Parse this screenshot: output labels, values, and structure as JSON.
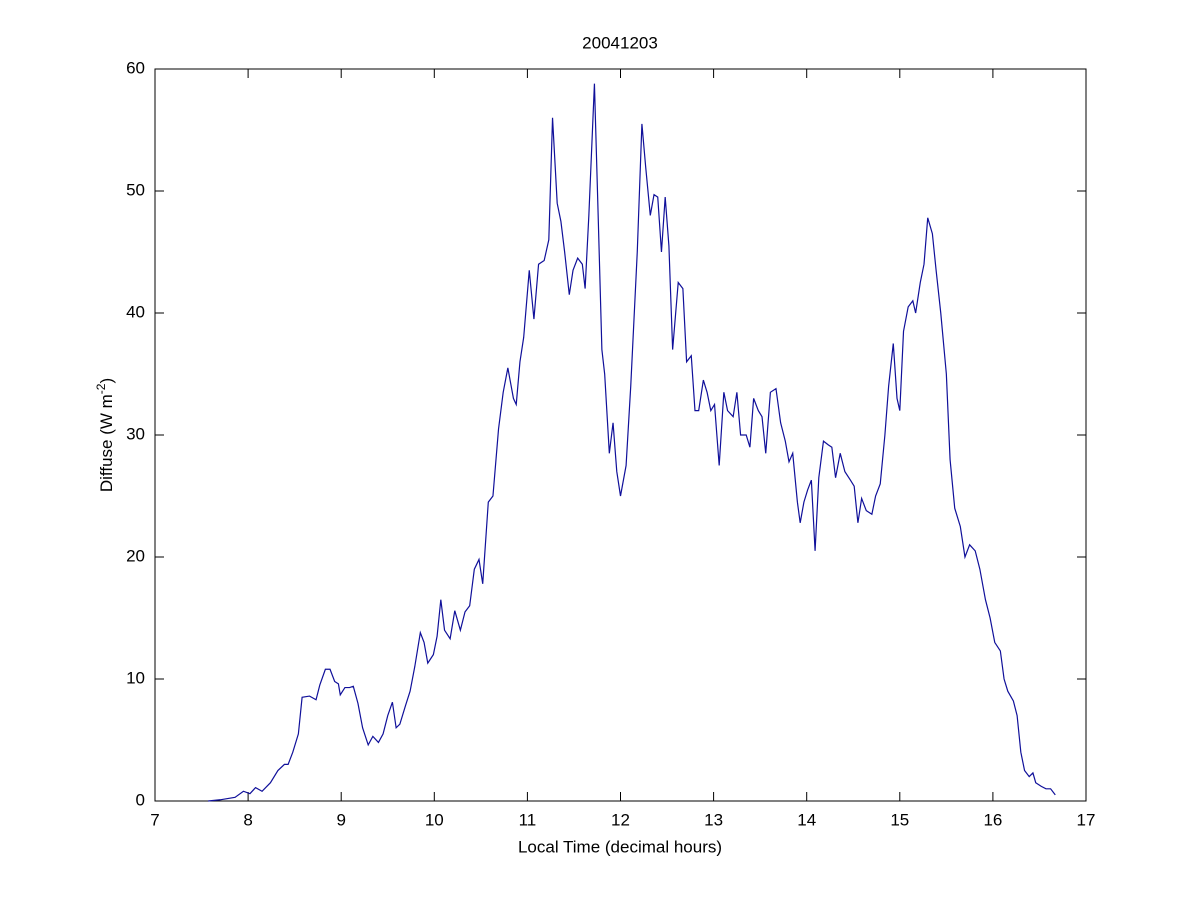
{
  "chart_data": {
    "type": "line",
    "title": "20041203",
    "x_label": "Local Time (decimal hours)",
    "y_label": {
      "text": "Diffuse (W m",
      "superscript": "-2",
      "suffix": ")"
    },
    "xlim": [
      7,
      17
    ],
    "xticks": [
      7,
      8,
      9,
      10,
      11,
      12,
      13,
      14,
      15,
      16,
      17
    ],
    "ylim": [
      0,
      60
    ],
    "yticks": [
      0,
      10,
      20,
      30,
      40,
      50,
      60
    ],
    "grid": false,
    "series": [
      {
        "color": "#10109a",
        "x": [
          7.57,
          7.7,
          7.86,
          7.95,
          8.02,
          8.08,
          8.15,
          8.24,
          8.32,
          8.39,
          8.43,
          8.48,
          8.54,
          8.58,
          8.66,
          8.73,
          8.77,
          8.83,
          8.88,
          8.93,
          8.97,
          8.99,
          9.04,
          9.09,
          9.13,
          9.18,
          9.23,
          9.29,
          9.34,
          9.4,
          9.45,
          9.5,
          9.55,
          9.59,
          9.63,
          9.69,
          9.74,
          9.79,
          9.85,
          9.89,
          9.93,
          9.99,
          10.03,
          10.07,
          10.11,
          10.17,
          10.22,
          10.28,
          10.33,
          10.38,
          10.43,
          10.48,
          10.52,
          10.58,
          10.63,
          10.69,
          10.74,
          10.79,
          10.85,
          10.88,
          10.92,
          10.96,
          11.02,
          11.07,
          11.12,
          11.18,
          11.23,
          11.27,
          11.32,
          11.36,
          11.4,
          11.45,
          11.49,
          11.54,
          11.59,
          11.62,
          11.66,
          11.72,
          11.76,
          11.8,
          11.83,
          11.88,
          11.92,
          11.96,
          12.0,
          12.06,
          12.11,
          12.18,
          12.23,
          12.27,
          12.32,
          12.36,
          12.4,
          12.44,
          12.48,
          12.52,
          12.56,
          12.62,
          12.67,
          12.71,
          12.76,
          12.8,
          12.84,
          12.89,
          12.93,
          12.97,
          13.01,
          13.06,
          13.11,
          13.15,
          13.21,
          13.25,
          13.29,
          13.35,
          13.39,
          13.43,
          13.48,
          13.52,
          13.56,
          13.61,
          13.67,
          13.72,
          13.77,
          13.81,
          13.85,
          13.9,
          13.93,
          13.97,
          14.01,
          14.05,
          14.09,
          14.13,
          14.18,
          14.23,
          14.27,
          14.31,
          14.36,
          14.41,
          14.47,
          14.51,
          14.55,
          14.59,
          14.64,
          14.7,
          14.74,
          14.79,
          14.84,
          14.88,
          14.93,
          14.97,
          15.0,
          15.04,
          15.09,
          15.14,
          15.17,
          15.22,
          15.26,
          15.3,
          15.35,
          15.39,
          15.44,
          15.5,
          15.54,
          15.59,
          15.65,
          15.7,
          15.75,
          15.81,
          15.86,
          15.92,
          15.97,
          16.02,
          16.08,
          16.12,
          16.16,
          16.22,
          16.26,
          16.3,
          16.34,
          16.39,
          16.43,
          16.46,
          16.52,
          16.57,
          16.62,
          16.67
        ],
        "values": [
          0,
          0.1,
          0.3,
          0.8,
          0.6,
          1.1,
          0.8,
          1.5,
          2.5,
          3.0,
          3.0,
          4.0,
          5.5,
          8.5,
          8.6,
          8.3,
          9.5,
          10.8,
          10.8,
          9.8,
          9.6,
          8.7,
          9.3,
          9.3,
          9.4,
          8.0,
          6.0,
          4.6,
          5.3,
          4.8,
          5.5,
          7.0,
          8.1,
          6.0,
          6.3,
          7.8,
          9.0,
          11.0,
          13.8,
          13.0,
          11.3,
          12.0,
          13.5,
          16.5,
          14.0,
          13.3,
          15.6,
          14.0,
          15.5,
          16.0,
          19.0,
          19.8,
          17.8,
          24.5,
          25.0,
          30.5,
          33.5,
          35.5,
          33.0,
          32.5,
          36.0,
          38.0,
          43.5,
          39.5,
          44.0,
          44.3,
          46.0,
          56.0,
          49.0,
          47.5,
          45.0,
          41.5,
          43.5,
          44.5,
          44.0,
          42.0,
          48.0,
          58.8,
          48.0,
          37.0,
          35.0,
          28.5,
          31.0,
          27.0,
          25.0,
          27.5,
          34.0,
          45.0,
          55.5,
          52.0,
          48.0,
          49.7,
          49.5,
          45.0,
          49.5,
          45.5,
          37.0,
          42.5,
          42.0,
          36.0,
          36.5,
          32.0,
          32.0,
          34.5,
          33.5,
          32.0,
          32.5,
          27.5,
          33.5,
          32.0,
          31.5,
          33.5,
          30.0,
          30.0,
          29.0,
          33.0,
          32.0,
          31.5,
          28.5,
          33.5,
          33.8,
          31.0,
          29.5,
          27.8,
          28.5,
          24.5,
          22.8,
          24.5,
          25.5,
          26.3,
          20.5,
          26.5,
          29.5,
          29.2,
          29.0,
          26.5,
          28.5,
          27.0,
          26.3,
          25.8,
          22.8,
          24.8,
          23.8,
          23.5,
          25.0,
          26.0,
          30.0,
          34.0,
          37.5,
          33.0,
          32.0,
          38.5,
          40.5,
          41.0,
          40.0,
          42.5,
          44.0,
          47.8,
          46.5,
          43.5,
          40.0,
          35.0,
          28.0,
          24.0,
          22.5,
          20.0,
          21.0,
          20.5,
          19.0,
          16.5,
          15.0,
          13.0,
          12.3,
          10.0,
          9.0,
          8.2,
          7.0,
          4.0,
          2.5,
          2.0,
          2.3,
          1.5,
          1.2,
          1.0,
          1.0,
          0.5
        ]
      }
    ]
  }
}
